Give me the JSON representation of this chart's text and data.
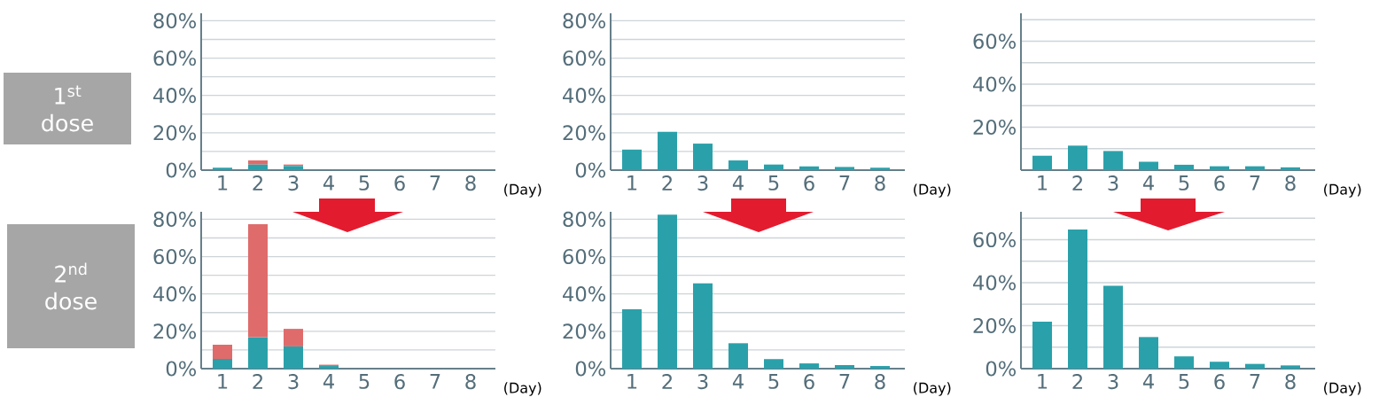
{
  "chart_data": [
    {
      "type": "bar",
      "stacked": true,
      "annotations": [
        "1$^{st}$ dose"
      ],
      "categories": [
        "1",
        "2",
        "3",
        "4",
        "5",
        "6",
        "7",
        "8"
      ],
      "xlabel": "(Day)",
      "series": [
        {
          "color": "#2aa1aa",
          "values": [
            1.3,
            3,
            2.2,
            0,
            0,
            0,
            0,
            0
          ]
        },
        {
          "color": "#e06b6b",
          "values": [
            0,
            2.2,
            0.8,
            0,
            0,
            0,
            0,
            0
          ]
        }
      ],
      "ylim": [
        0,
        84
      ],
      "yticks": [
        {
          "value": 0,
          "label": "0%"
        },
        {
          "value": 10,
          "label": null
        },
        {
          "value": 20,
          "label": "20%"
        },
        {
          "value": 30,
          "label": null
        },
        {
          "value": 40,
          "label": "40%"
        },
        {
          "value": 50,
          "label": null
        },
        {
          "value": 60,
          "label": "60%"
        },
        {
          "value": 70,
          "label": null
        },
        {
          "value": 80,
          "label": "80%"
        }
      ],
      "grid": "y"
    },
    {
      "type": "bar",
      "categories": [
        "1",
        "2",
        "3",
        "4",
        "5",
        "6",
        "7",
        "8"
      ],
      "xlabel": "(Day)",
      "series": [
        {
          "color": "#2aa1aa",
          "values": [
            11,
            20.5,
            14.2,
            5.2,
            3,
            2,
            1.7,
            1.3
          ]
        }
      ],
      "ylim": [
        0,
        84
      ],
      "yticks": [
        {
          "value": 0,
          "label": "0%"
        },
        {
          "value": 10,
          "label": null
        },
        {
          "value": 20,
          "label": "20%"
        },
        {
          "value": 30,
          "label": null
        },
        {
          "value": 40,
          "label": "40%"
        },
        {
          "value": 50,
          "label": null
        },
        {
          "value": 60,
          "label": "60%"
        },
        {
          "value": 70,
          "label": null
        },
        {
          "value": 80,
          "label": "80%"
        }
      ],
      "grid": "y"
    },
    {
      "type": "bar",
      "categories": [
        "1",
        "2",
        "3",
        "4",
        "5",
        "6",
        "7",
        "8"
      ],
      "xlabel": "(Day)",
      "series": [
        {
          "color": "#2aa1aa",
          "values": [
            6.7,
            11.4,
            8.9,
            3.9,
            2.5,
            1.8,
            1.8,
            1.3
          ]
        }
      ],
      "ylim": [
        0,
        73
      ],
      "yticks": [
        {
          "value": 0,
          "label": null
        },
        {
          "value": 10,
          "label": null
        },
        {
          "value": 20,
          "label": "20%"
        },
        {
          "value": 30,
          "label": null
        },
        {
          "value": 40,
          "label": "40%"
        },
        {
          "value": 50,
          "label": null
        },
        {
          "value": 60,
          "label": "60%"
        },
        {
          "value": 70,
          "label": null
        }
      ],
      "grid": "y"
    },
    {
      "type": "bar",
      "stacked": true,
      "annotations": [
        "2$^{nd}$ dose"
      ],
      "categories": [
        "1",
        "2",
        "3",
        "4",
        "5",
        "6",
        "7",
        "8"
      ],
      "xlabel": "(Day)",
      "series": [
        {
          "color": "#2aa1aa",
          "values": [
            5.2,
            16.8,
            11.9,
            1.4,
            0,
            0,
            0,
            0
          ]
        },
        {
          "color": "#e06b6b",
          "values": [
            7.6,
            60.5,
            9.4,
            0.7,
            0,
            0,
            0,
            0
          ]
        }
      ],
      "ylim": [
        0,
        84
      ],
      "yticks": [
        {
          "value": 0,
          "label": "0%"
        },
        {
          "value": 10,
          "label": null
        },
        {
          "value": 20,
          "label": "20%"
        },
        {
          "value": 30,
          "label": null
        },
        {
          "value": 40,
          "label": "40%"
        },
        {
          "value": 50,
          "label": null
        },
        {
          "value": 60,
          "label": "60%"
        },
        {
          "value": 70,
          "label": null
        },
        {
          "value": 80,
          "label": "80%"
        }
      ],
      "grid": "y"
    },
    {
      "type": "bar",
      "categories": [
        "1",
        "2",
        "3",
        "4",
        "5",
        "6",
        "7",
        "8"
      ],
      "xlabel": "(Day)",
      "series": [
        {
          "color": "#2aa1aa",
          "values": [
            31.8,
            82.4,
            45.7,
            13.6,
            5.1,
            2.8,
            1.9,
            1.4
          ]
        }
      ],
      "ylim": [
        0,
        84
      ],
      "yticks": [
        {
          "value": 0,
          "label": "0%"
        },
        {
          "value": 10,
          "label": null
        },
        {
          "value": 20,
          "label": "20%"
        },
        {
          "value": 30,
          "label": null
        },
        {
          "value": 40,
          "label": "40%"
        },
        {
          "value": 50,
          "label": null
        },
        {
          "value": 60,
          "label": "60%"
        },
        {
          "value": 70,
          "label": null
        },
        {
          "value": 80,
          "label": "80%"
        }
      ],
      "grid": "y"
    },
    {
      "type": "bar",
      "categories": [
        "1",
        "2",
        "3",
        "4",
        "5",
        "6",
        "7",
        "8"
      ],
      "xlabel": "(Day)",
      "series": [
        {
          "color": "#2aa1aa",
          "values": [
            21.9,
            64.8,
            38.6,
            14.7,
            5.7,
            3.2,
            2.2,
            1.5
          ]
        }
      ],
      "ylim": [
        0,
        73
      ],
      "yticks": [
        {
          "value": 0,
          "label": "0%"
        },
        {
          "value": 10,
          "label": null
        },
        {
          "value": 20,
          "label": "20%"
        },
        {
          "value": 30,
          "label": null
        },
        {
          "value": 40,
          "label": "40%"
        },
        {
          "value": 50,
          "label": null
        },
        {
          "value": 60,
          "label": "60%"
        },
        {
          "value": 70,
          "label": null
        }
      ],
      "grid": "y"
    }
  ]
}
